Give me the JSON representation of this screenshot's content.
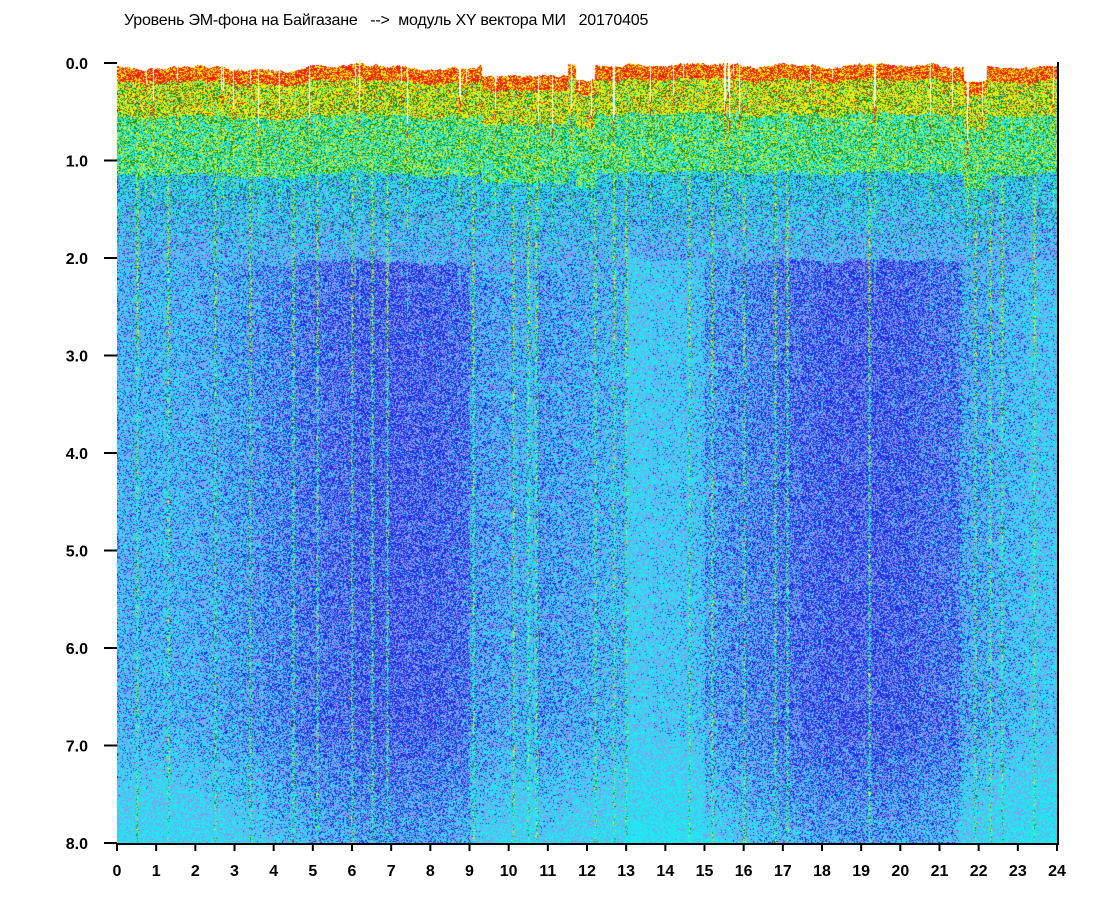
{
  "title": "Уровень ЭМ-фона на Байгазане   -->  модуль XY вектора МИ   20170405",
  "chart_data": {
    "type": "heatmap",
    "title": "Уровень ЭМ-фона на Байгазане   -->  модуль XY вектора МИ   20170405",
    "xlabel": "",
    "ylabel": "",
    "xlim": [
      0,
      24
    ],
    "ylim": [
      8.0,
      0.0
    ],
    "y_inverted": true,
    "x_ticks": [
      "0",
      "1",
      "2",
      "3",
      "4",
      "5",
      "6",
      "7",
      "8",
      "9",
      "10",
      "11",
      "12",
      "13",
      "14",
      "15",
      "16",
      "17",
      "18",
      "19",
      "20",
      "21",
      "22",
      "23",
      "24"
    ],
    "y_ticks": [
      "0.0",
      "1.0",
      "2.0",
      "3.0",
      "4.0",
      "5.0",
      "6.0",
      "7.0",
      "8.0"
    ],
    "grid": false,
    "colorscale": [
      "#ffffff",
      "#f02010",
      "#f0f000",
      "#109010",
      "#20e8f0",
      "#8898f0",
      "#2030e8"
    ],
    "background_color": "#ffffff",
    "notes_visible_streak_hours": [
      0.5,
      1.3,
      2.5,
      3.4,
      4.5,
      5.1,
      6.0,
      6.5,
      6.9,
      9.1,
      10.1,
      10.5,
      10.7,
      12.2,
      12.7,
      13.0,
      14.6,
      15.2,
      16.0,
      16.8,
      17.1,
      19.2,
      21.9,
      22.3,
      22.6,
      23.4
    ]
  }
}
